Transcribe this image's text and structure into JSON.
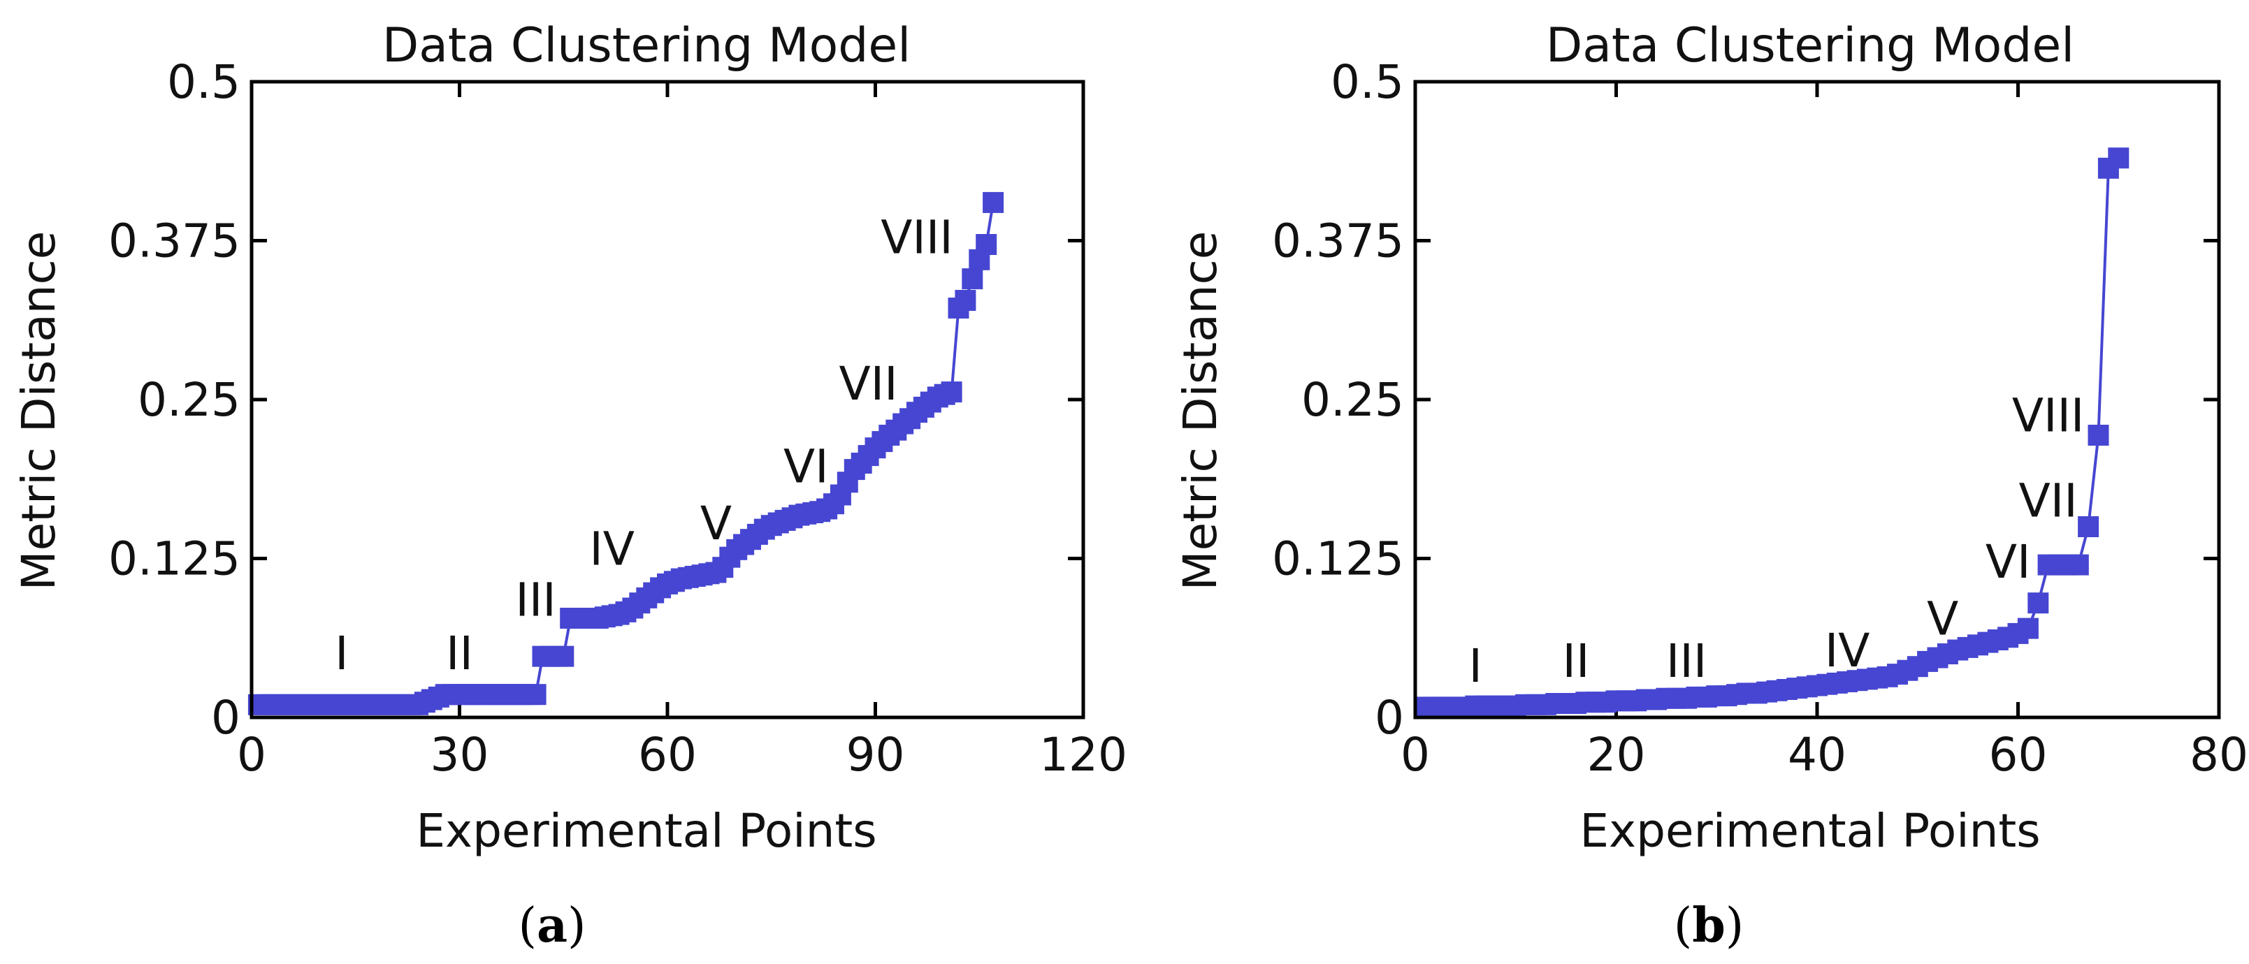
{
  "chart_data": [
    {
      "type": "line",
      "caption_letter": "a",
      "title": "Data Clustering Model",
      "xlabel": "Experimental Points",
      "ylabel": "Metric Distance",
      "xlim": [
        0,
        120
      ],
      "ylim": [
        0,
        0.5
      ],
      "x_ticks": [
        0,
        30,
        60,
        90,
        120
      ],
      "x_tick_labels": [
        "0",
        "30",
        "60",
        "90",
        "120"
      ],
      "y_ticks": [
        0,
        0.125,
        0.25,
        0.375,
        0.5
      ],
      "y_tick_labels": [
        "0",
        "0.125",
        "0.25",
        "0.375",
        "0.5"
      ],
      "marker": "square",
      "color": "#4646d2",
      "series": [
        {
          "name": "Metric Distance",
          "x": [
            1,
            2,
            3,
            4,
            5,
            6,
            7,
            8,
            9,
            10,
            11,
            12,
            13,
            14,
            15,
            16,
            17,
            18,
            19,
            20,
            21,
            22,
            23,
            24,
            25,
            26,
            27,
            28,
            29,
            30,
            31,
            32,
            33,
            34,
            35,
            36,
            37,
            38,
            39,
            40,
            41,
            42,
            43,
            44,
            45,
            46,
            47,
            48,
            49,
            50,
            51,
            52,
            53,
            54,
            55,
            56,
            57,
            58,
            59,
            60,
            61,
            62,
            63,
            64,
            65,
            66,
            67,
            68,
            69,
            70,
            71,
            72,
            73,
            74,
            75,
            76,
            77,
            78,
            79,
            80,
            81,
            82,
            83,
            84,
            85,
            86,
            87,
            88,
            89,
            90,
            91,
            92,
            93,
            94,
            95,
            96,
            97,
            98,
            99,
            100,
            101,
            102,
            103,
            104,
            105,
            106,
            107
          ],
          "values": [
            0.01,
            0.01,
            0.01,
            0.01,
            0.01,
            0.01,
            0.01,
            0.01,
            0.01,
            0.01,
            0.01,
            0.01,
            0.01,
            0.01,
            0.01,
            0.01,
            0.01,
            0.01,
            0.01,
            0.01,
            0.01,
            0.01,
            0.01,
            0.01,
            0.012,
            0.014,
            0.016,
            0.018,
            0.018,
            0.018,
            0.018,
            0.018,
            0.018,
            0.018,
            0.018,
            0.018,
            0.018,
            0.018,
            0.018,
            0.018,
            0.018,
            0.048,
            0.048,
            0.048,
            0.048,
            0.078,
            0.078,
            0.078,
            0.078,
            0.078,
            0.079,
            0.08,
            0.081,
            0.083,
            0.086,
            0.09,
            0.094,
            0.098,
            0.102,
            0.105,
            0.107,
            0.109,
            0.11,
            0.111,
            0.112,
            0.113,
            0.114,
            0.118,
            0.126,
            0.132,
            0.136,
            0.14,
            0.144,
            0.148,
            0.151,
            0.153,
            0.155,
            0.157,
            0.159,
            0.16,
            0.161,
            0.162,
            0.164,
            0.168,
            0.175,
            0.185,
            0.195,
            0.2,
            0.206,
            0.212,
            0.217,
            0.222,
            0.226,
            0.231,
            0.235,
            0.24,
            0.244,
            0.248,
            0.252,
            0.254,
            0.256,
            0.322,
            0.328,
            0.345,
            0.36,
            0.372,
            0.405
          ]
        }
      ],
      "annotations": [
        {
          "text": "I",
          "x": 13,
          "y": 0.038
        },
        {
          "text": "II",
          "x": 30,
          "y": 0.038
        },
        {
          "text": "III",
          "x": 41,
          "y": 0.08
        },
        {
          "text": "IV",
          "x": 52,
          "y": 0.12
        },
        {
          "text": "V",
          "x": 67,
          "y": 0.14
        },
        {
          "text": "VI",
          "x": 80,
          "y": 0.185
        },
        {
          "text": "VII",
          "x": 89,
          "y": 0.25
        },
        {
          "text": "VIII",
          "x": 96,
          "y": 0.365
        }
      ]
    },
    {
      "type": "line",
      "caption_letter": "b",
      "title": "Data Clustering Model",
      "xlabel": "Experimental Points",
      "ylabel": "Metric Distance",
      "xlim": [
        0,
        80
      ],
      "ylim": [
        0,
        0.5
      ],
      "x_ticks": [
        0,
        20,
        40,
        60,
        80
      ],
      "x_tick_labels": [
        "0",
        "20",
        "40",
        "60",
        "80"
      ],
      "y_ticks": [
        0,
        0.125,
        0.25,
        0.375,
        0.5
      ],
      "y_tick_labels": [
        "0",
        "0.125",
        "0.25",
        "0.375",
        "0.5"
      ],
      "marker": "square",
      "color": "#4646d2",
      "series": [
        {
          "name": "Metric Distance",
          "x": [
            1,
            2,
            3,
            4,
            5,
            6,
            7,
            8,
            9,
            10,
            11,
            12,
            13,
            14,
            15,
            16,
            17,
            18,
            19,
            20,
            21,
            22,
            23,
            24,
            25,
            26,
            27,
            28,
            29,
            30,
            31,
            32,
            33,
            34,
            35,
            36,
            37,
            38,
            39,
            40,
            41,
            42,
            43,
            44,
            45,
            46,
            47,
            48,
            49,
            50,
            51,
            52,
            53,
            54,
            55,
            56,
            57,
            58,
            59,
            60,
            61,
            62,
            63,
            64,
            65,
            66,
            67,
            68,
            69,
            70
          ],
          "values": [
            0.008,
            0.008,
            0.008,
            0.008,
            0.008,
            0.009,
            0.009,
            0.009,
            0.009,
            0.009,
            0.01,
            0.01,
            0.01,
            0.011,
            0.011,
            0.011,
            0.012,
            0.012,
            0.012,
            0.013,
            0.013,
            0.013,
            0.014,
            0.014,
            0.015,
            0.015,
            0.015,
            0.016,
            0.016,
            0.017,
            0.017,
            0.018,
            0.019,
            0.019,
            0.02,
            0.021,
            0.022,
            0.023,
            0.024,
            0.025,
            0.026,
            0.027,
            0.028,
            0.029,
            0.03,
            0.031,
            0.032,
            0.034,
            0.037,
            0.04,
            0.044,
            0.047,
            0.05,
            0.053,
            0.055,
            0.057,
            0.059,
            0.061,
            0.063,
            0.066,
            0.07,
            0.09,
            0.12,
            0.12,
            0.12,
            0.12,
            0.15,
            0.222,
            0.432,
            0.44
          ]
        }
      ],
      "annotations": [
        {
          "text": "I",
          "x": 6,
          "y": 0.028
        },
        {
          "text": "II",
          "x": 16,
          "y": 0.032
        },
        {
          "text": "III",
          "x": 27,
          "y": 0.032
        },
        {
          "text": "IV",
          "x": 43,
          "y": 0.04
        },
        {
          "text": "V",
          "x": 52.5,
          "y": 0.065
        },
        {
          "text": "VI",
          "x": 59,
          "y": 0.11
        },
        {
          "text": "VII",
          "x": 63,
          "y": 0.158
        },
        {
          "text": "VIII",
          "x": 63,
          "y": 0.225
        }
      ]
    }
  ]
}
